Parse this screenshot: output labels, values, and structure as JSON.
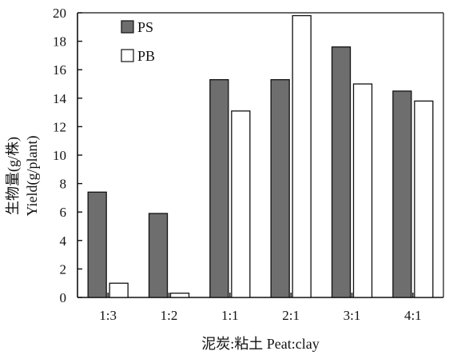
{
  "chart_data": {
    "type": "bar",
    "categories": [
      "1:3",
      "1:2",
      "1:1",
      "2:1",
      "3:1",
      "4:1"
    ],
    "series": [
      {
        "name": "PS",
        "values": [
          7.4,
          5.9,
          15.3,
          15.3,
          17.6,
          14.5
        ],
        "color": "#6e6e6e"
      },
      {
        "name": "PB",
        "values": [
          1.0,
          0.3,
          13.1,
          19.8,
          15.0,
          13.8
        ],
        "color": "#ffffff"
      }
    ],
    "ylim": [
      0,
      20
    ],
    "yticks": [
      0,
      2,
      4,
      6,
      8,
      10,
      12,
      14,
      16,
      18,
      20
    ],
    "ylabel_line1": "生物量(g/株)",
    "ylabel_line2": "Yield(g/plant)",
    "xlabel": "泥炭:粘土 Peat:clay",
    "legend_position": "top-left",
    "grid": false
  }
}
